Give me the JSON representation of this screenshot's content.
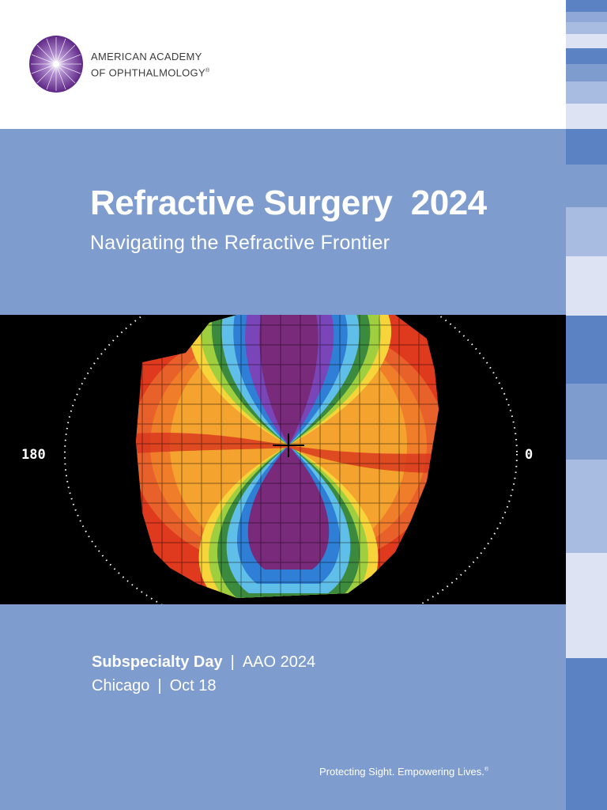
{
  "organization": {
    "line1": "AMERICAN ACADEMY",
    "line2": "OF OPHTHALMOLOGY",
    "registered": "®",
    "logo_icon": "starburst-eye-icon",
    "logo_color": "#6b2f8f"
  },
  "cover": {
    "title": "Refractive Surgery  2024",
    "subtitle": "Navigating the Refractive Frontier"
  },
  "topography_image": {
    "label_left": "180",
    "label_right": "0"
  },
  "event": {
    "name": "Subspecialty Day",
    "separator": "|",
    "meeting": "AAO 2024",
    "city": "Chicago",
    "date": "Oct 18"
  },
  "footer": {
    "tagline": "Protecting Sight. Empowering Lives.",
    "registered": "®"
  },
  "colors": {
    "brand_blue": "#7f9ccf",
    "dark_blue": "#5b82c2",
    "light_blue": "#dde3f2",
    "white": "#ffffff"
  }
}
